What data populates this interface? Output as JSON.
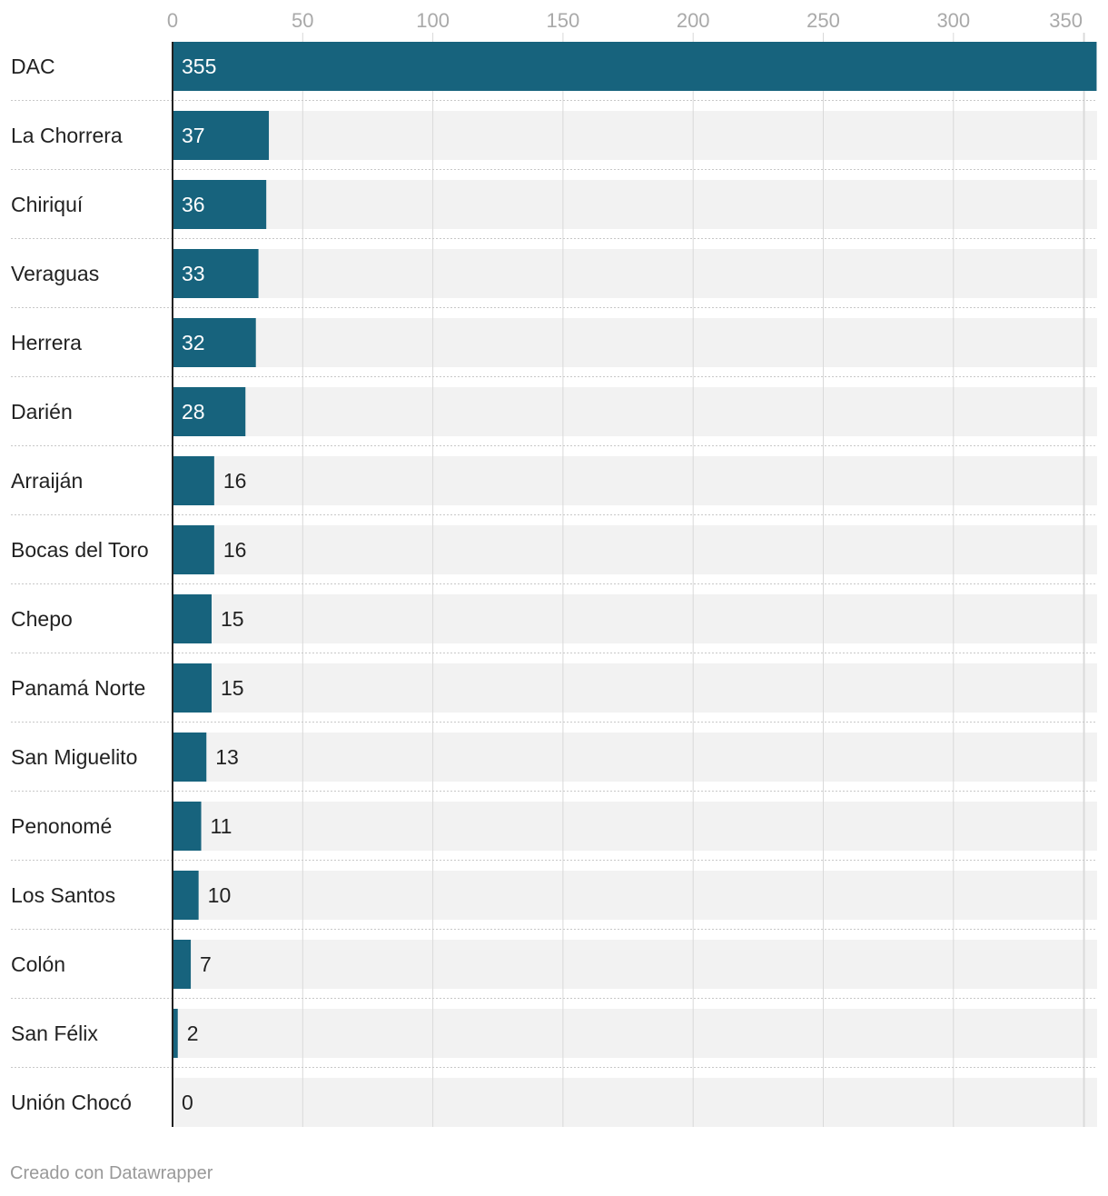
{
  "chart_data": {
    "type": "bar",
    "orientation": "horizontal",
    "categories": [
      "DAC",
      "La Chorrera",
      "Chiriquí",
      "Veraguas",
      "Herrera",
      "Darién",
      "Arraiján",
      "Bocas del Toro",
      "Chepo",
      "Panamá Norte",
      "San Miguelito",
      "Penonomé",
      "Los Santos",
      "Colón",
      "San Félix",
      "Unión Chocó"
    ],
    "values": [
      355,
      37,
      36,
      33,
      32,
      28,
      16,
      16,
      15,
      15,
      13,
      11,
      10,
      7,
      2,
      0
    ],
    "xticks": [
      0,
      50,
      100,
      150,
      200,
      250,
      300,
      350
    ],
    "xlim": [
      0,
      355
    ],
    "grid": true,
    "colors": {
      "bar": "#17637d",
      "track": "#f2f2f2",
      "grid": "#d9d9d9",
      "label_inside": "#ffffff",
      "label_outside": "#222222"
    }
  },
  "footer": {
    "credit": "Creado con Datawrapper"
  }
}
